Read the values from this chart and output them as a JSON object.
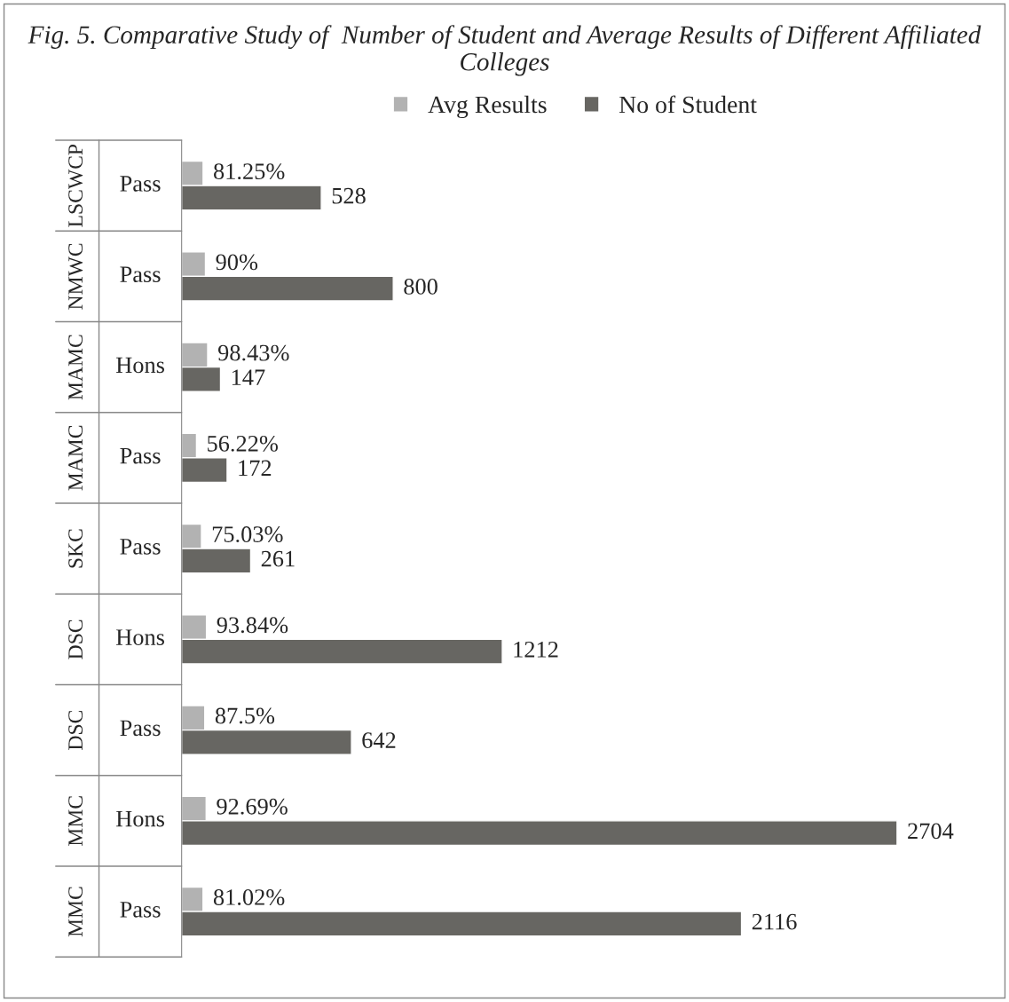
{
  "chart_data": {
    "type": "bar",
    "orientation": "horizontal",
    "title": "Fig. 5. Comparative Study of  Number of Student and Average Results of Different Affiliated Colleges",
    "categories": [
      "LSCWCP Pass",
      "NMWC Pass",
      "MAMC Hons",
      "MAMC Pass",
      "SKC Pass",
      "DSC Hons",
      "DSC Pass",
      "MMC Hons",
      "MMC Pass"
    ],
    "series": [
      {
        "name": "Avg Results",
        "color": "#b2b2b2",
        "values": [
          81.25,
          90,
          98.43,
          56.22,
          75.03,
          93.84,
          87.5,
          92.69,
          81.02
        ],
        "value_labels": [
          "81.25%",
          "90%",
          "98.43%",
          "56.22%",
          "75.03%",
          "93.84%",
          "87.5%",
          "92.69%",
          "81.02%"
        ]
      },
      {
        "name": "No of Student",
        "color": "#676662",
        "values": [
          528,
          800,
          147,
          172,
          261,
          1212,
          642,
          2704,
          2116
        ],
        "value_labels": [
          "528",
          "800",
          "147",
          "172",
          "261",
          "1212",
          "642",
          "2704",
          "2116"
        ]
      }
    ],
    "legend": "top"
  }
}
